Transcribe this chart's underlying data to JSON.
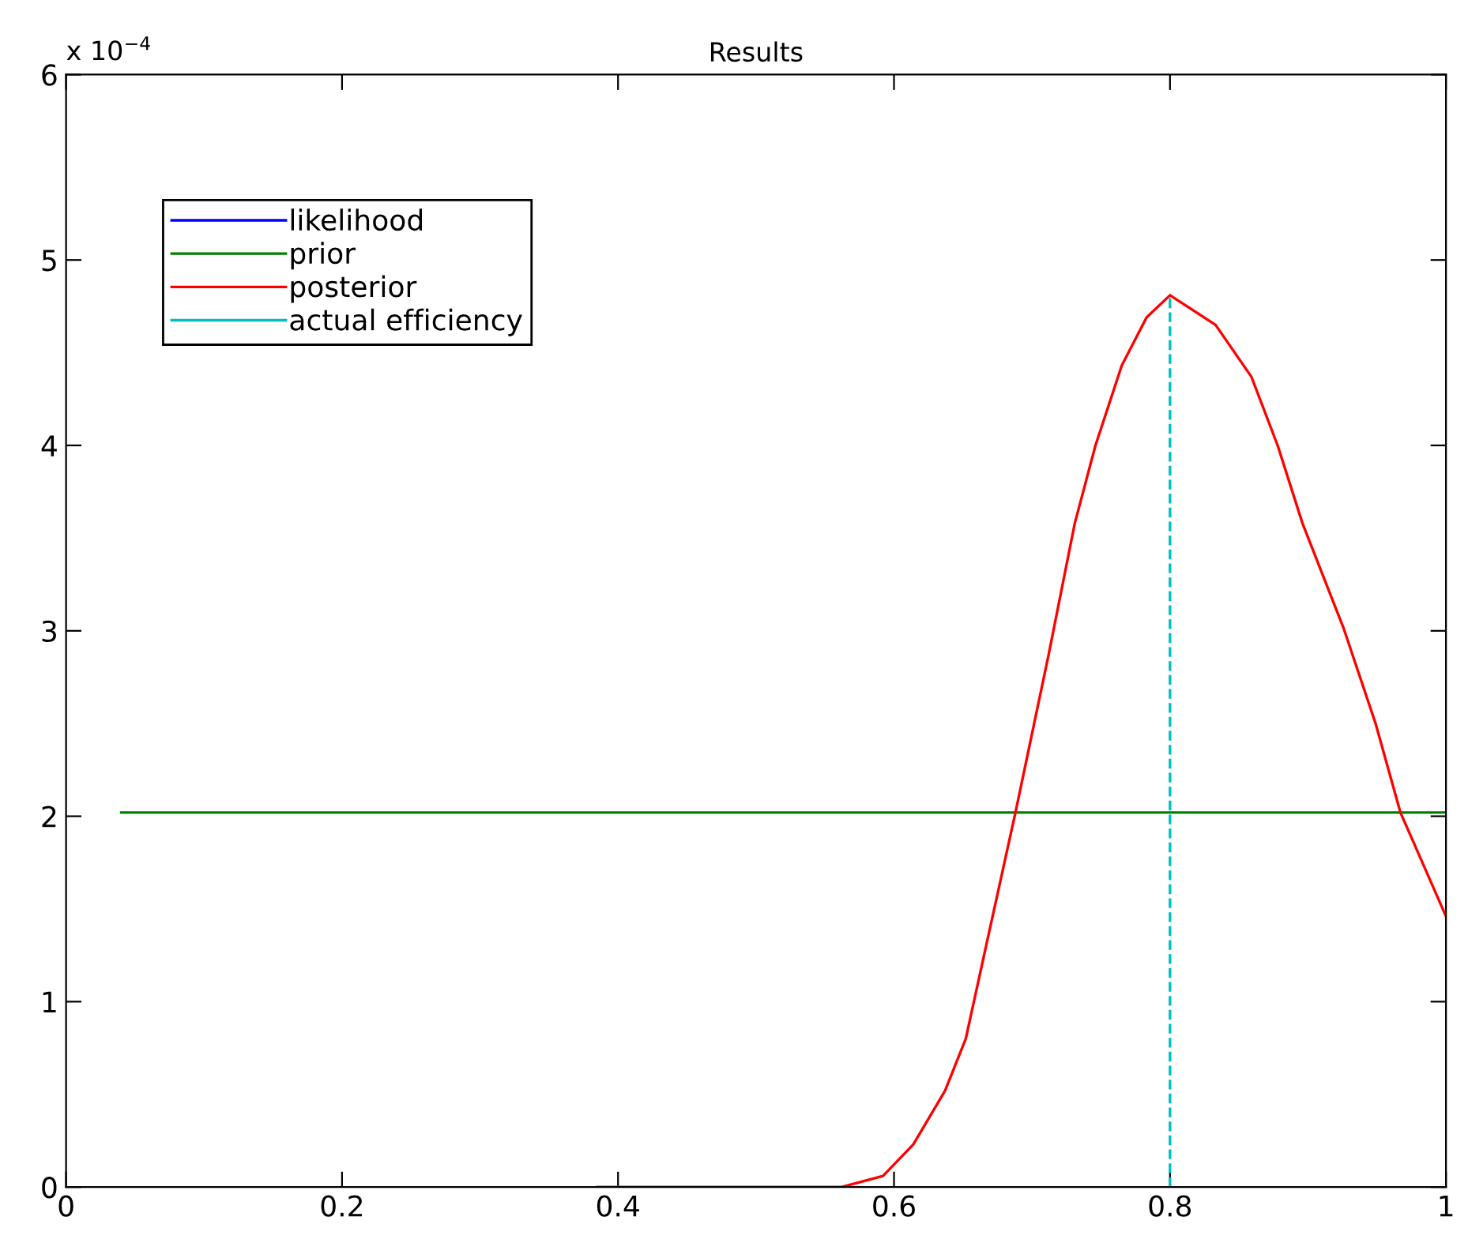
{
  "chart_data": {
    "type": "line",
    "title": "Results",
    "xlim": [
      0,
      1
    ],
    "xticks": [
      0,
      0.2,
      0.4,
      0.6,
      0.8,
      1
    ],
    "ylim": [
      0,
      6
    ],
    "yticks": [
      0,
      1,
      2,
      3,
      4,
      5,
      6
    ],
    "annotations": [
      "x 10$^{−4}$"
    ],
    "grid": false,
    "legend": "top left",
    "series": [
      {
        "name": "likelihood",
        "color": "#0000ff"
      },
      {
        "name": "prior",
        "color": "#008000",
        "x": [
          0.04,
          1
        ],
        "values": [
          2.02,
          2.02
        ]
      },
      {
        "name": "posterior",
        "color": "#ff0000",
        "x": [
          0.385,
          0.45,
          0.5,
          0.562,
          0.592,
          0.614,
          0.637,
          0.652,
          0.667,
          0.688,
          0.712,
          0.731,
          0.746,
          0.765,
          0.783,
          0.8,
          0.833,
          0.859,
          0.878,
          0.896,
          0.926,
          0.949,
          0.967,
          1.0
        ],
        "values": [
          0,
          0,
          0,
          0,
          0.06,
          0.23,
          0.52,
          0.8,
          1.31,
          2.02,
          2.87,
          3.58,
          4.0,
          4.43,
          4.69,
          4.81,
          4.65,
          4.37,
          4.0,
          3.58,
          3.01,
          2.5,
          2.02,
          1.46
        ]
      },
      {
        "name": "actual efficiency",
        "color": "#00bfbf",
        "x": [
          0.8,
          0.8
        ],
        "values": [
          0,
          4.81
        ],
        "line_style": "dashed"
      }
    ]
  }
}
